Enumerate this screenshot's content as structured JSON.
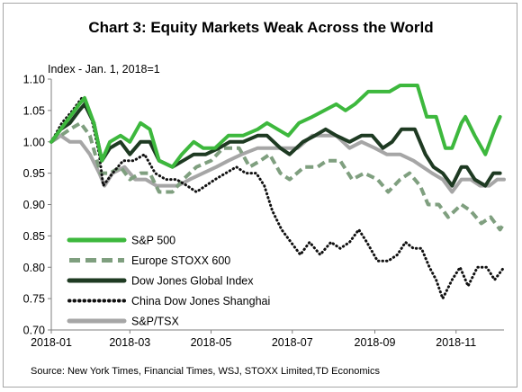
{
  "chart_data": {
    "type": "line",
    "title": "Chart 3: Equity Markets Weak Across the World",
    "ylabel": "Index - Jan. 1, 2018=1",
    "xlabel": "",
    "source": "Source: New York Times, Financial Times, WSJ,  STOXX Limited,TD Economics",
    "ylim": [
      0.7,
      1.1
    ],
    "yticks": [
      "0.70",
      "0.75",
      "0.80",
      "0.85",
      "0.90",
      "0.95",
      "1.00",
      "1.05",
      "1.10"
    ],
    "xticks": [
      "2018-01",
      "2018-03",
      "2018-05",
      "2018-07",
      "2018-09",
      "2018-11"
    ],
    "xlim": [
      "2018-01-01",
      "2018-12-07"
    ],
    "grid": false,
    "legend": "bottom-left",
    "series": [
      {
        "name": "S&P 500",
        "color": "#3db83d",
        "style": "solid",
        "points": [
          [
            "2018-01-01",
            1.0
          ],
          [
            "2018-01-08",
            1.02
          ],
          [
            "2018-01-15",
            1.04
          ],
          [
            "2018-01-22",
            1.06
          ],
          [
            "2018-01-26",
            1.07
          ],
          [
            "2018-02-02",
            1.03
          ],
          [
            "2018-02-08",
            0.97
          ],
          [
            "2018-02-14",
            1.0
          ],
          [
            "2018-02-22",
            1.01
          ],
          [
            "2018-03-01",
            1.0
          ],
          [
            "2018-03-09",
            1.03
          ],
          [
            "2018-03-16",
            1.02
          ],
          [
            "2018-03-23",
            0.97
          ],
          [
            "2018-04-02",
            0.96
          ],
          [
            "2018-04-09",
            0.98
          ],
          [
            "2018-04-18",
            1.0
          ],
          [
            "2018-04-25",
            0.99
          ],
          [
            "2018-05-04",
            0.99
          ],
          [
            "2018-05-14",
            1.01
          ],
          [
            "2018-05-25",
            1.01
          ],
          [
            "2018-06-05",
            1.02
          ],
          [
            "2018-06-12",
            1.03
          ],
          [
            "2018-06-20",
            1.02
          ],
          [
            "2018-06-28",
            1.01
          ],
          [
            "2018-07-06",
            1.03
          ],
          [
            "2018-07-16",
            1.04
          ],
          [
            "2018-07-25",
            1.05
          ],
          [
            "2018-08-03",
            1.06
          ],
          [
            "2018-08-10",
            1.05
          ],
          [
            "2018-08-17",
            1.06
          ],
          [
            "2018-08-27",
            1.08
          ],
          [
            "2018-09-05",
            1.08
          ],
          [
            "2018-09-12",
            1.08
          ],
          [
            "2018-09-20",
            1.09
          ],
          [
            "2018-09-28",
            1.09
          ],
          [
            "2018-10-03",
            1.09
          ],
          [
            "2018-10-10",
            1.04
          ],
          [
            "2018-10-17",
            1.04
          ],
          [
            "2018-10-24",
            0.99
          ],
          [
            "2018-10-29",
            0.99
          ],
          [
            "2018-11-05",
            1.03
          ],
          [
            "2018-11-08",
            1.04
          ],
          [
            "2018-11-15",
            1.01
          ],
          [
            "2018-11-23",
            0.98
          ],
          [
            "2018-11-30",
            1.02
          ],
          [
            "2018-12-04",
            1.04
          ]
        ]
      },
      {
        "name": "Europe STOXX 600",
        "color": "#7f9f7f",
        "style": "dashed",
        "points": [
          [
            "2018-01-01",
            1.0
          ],
          [
            "2018-01-08",
            1.01
          ],
          [
            "2018-01-15",
            1.02
          ],
          [
            "2018-01-23",
            1.03
          ],
          [
            "2018-01-30",
            1.01
          ],
          [
            "2018-02-07",
            0.95
          ],
          [
            "2018-02-14",
            0.95
          ],
          [
            "2018-02-22",
            0.96
          ],
          [
            "2018-03-01",
            0.94
          ],
          [
            "2018-03-09",
            0.95
          ],
          [
            "2018-03-16",
            0.95
          ],
          [
            "2018-03-23",
            0.92
          ],
          [
            "2018-04-02",
            0.92
          ],
          [
            "2018-04-10",
            0.94
          ],
          [
            "2018-04-20",
            0.96
          ],
          [
            "2018-05-01",
            0.97
          ],
          [
            "2018-05-10",
            0.99
          ],
          [
            "2018-05-22",
            0.99
          ],
          [
            "2018-05-30",
            0.96
          ],
          [
            "2018-06-07",
            0.97
          ],
          [
            "2018-06-14",
            0.98
          ],
          [
            "2018-06-22",
            0.95
          ],
          [
            "2018-06-29",
            0.94
          ],
          [
            "2018-07-10",
            0.96
          ],
          [
            "2018-07-20",
            0.96
          ],
          [
            "2018-07-27",
            0.97
          ],
          [
            "2018-08-06",
            0.97
          ],
          [
            "2018-08-15",
            0.94
          ],
          [
            "2018-08-24",
            0.95
          ],
          [
            "2018-09-03",
            0.94
          ],
          [
            "2018-09-11",
            0.92
          ],
          [
            "2018-09-20",
            0.94
          ],
          [
            "2018-09-27",
            0.95
          ],
          [
            "2018-10-05",
            0.93
          ],
          [
            "2018-10-11",
            0.9
          ],
          [
            "2018-10-19",
            0.9
          ],
          [
            "2018-10-26",
            0.88
          ],
          [
            "2018-11-05",
            0.9
          ],
          [
            "2018-11-12",
            0.89
          ],
          [
            "2018-11-20",
            0.87
          ],
          [
            "2018-11-27",
            0.88
          ],
          [
            "2018-12-04",
            0.86
          ],
          [
            "2018-12-07",
            0.87
          ]
        ]
      },
      {
        "name": "Dow Jones Global Index",
        "color": "#1e3a22",
        "style": "solid",
        "points": [
          [
            "2018-01-01",
            1.0
          ],
          [
            "2018-01-08",
            1.02
          ],
          [
            "2018-01-15",
            1.03
          ],
          [
            "2018-01-22",
            1.05
          ],
          [
            "2018-01-26",
            1.06
          ],
          [
            "2018-02-02",
            1.03
          ],
          [
            "2018-02-08",
            0.97
          ],
          [
            "2018-02-14",
            0.99
          ],
          [
            "2018-02-22",
            1.0
          ],
          [
            "2018-03-01",
            0.98
          ],
          [
            "2018-03-09",
            1.0
          ],
          [
            "2018-03-16",
            1.0
          ],
          [
            "2018-03-23",
            0.97
          ],
          [
            "2018-04-02",
            0.96
          ],
          [
            "2018-04-10",
            0.97
          ],
          [
            "2018-04-18",
            0.98
          ],
          [
            "2018-04-27",
            0.98
          ],
          [
            "2018-05-07",
            0.99
          ],
          [
            "2018-05-15",
            1.0
          ],
          [
            "2018-05-25",
            1.0
          ],
          [
            "2018-06-05",
            1.01
          ],
          [
            "2018-06-12",
            1.01
          ],
          [
            "2018-06-22",
            0.99
          ],
          [
            "2018-06-29",
            0.98
          ],
          [
            "2018-07-09",
            1.0
          ],
          [
            "2018-07-18",
            1.01
          ],
          [
            "2018-07-26",
            1.02
          ],
          [
            "2018-08-03",
            1.01
          ],
          [
            "2018-08-13",
            1.0
          ],
          [
            "2018-08-22",
            1.01
          ],
          [
            "2018-08-30",
            1.01
          ],
          [
            "2018-09-07",
            0.99
          ],
          [
            "2018-09-14",
            1.0
          ],
          [
            "2018-09-21",
            1.02
          ],
          [
            "2018-10-01",
            1.02
          ],
          [
            "2018-10-09",
            0.98
          ],
          [
            "2018-10-15",
            0.96
          ],
          [
            "2018-10-22",
            0.95
          ],
          [
            "2018-10-29",
            0.93
          ],
          [
            "2018-11-05",
            0.96
          ],
          [
            "2018-11-09",
            0.96
          ],
          [
            "2018-11-15",
            0.94
          ],
          [
            "2018-11-23",
            0.93
          ],
          [
            "2018-11-29",
            0.95
          ],
          [
            "2018-12-04",
            0.95
          ]
        ]
      },
      {
        "name": "China Dow Jones Shanghai",
        "color": "#111111",
        "style": "dotted",
        "points": [
          [
            "2018-01-01",
            1.0
          ],
          [
            "2018-01-09",
            1.03
          ],
          [
            "2018-01-17",
            1.05
          ],
          [
            "2018-01-24",
            1.07
          ],
          [
            "2018-01-31",
            1.04
          ],
          [
            "2018-02-06",
            0.98
          ],
          [
            "2018-02-09",
            0.93
          ],
          [
            "2018-02-16",
            0.95
          ],
          [
            "2018-02-24",
            0.97
          ],
          [
            "2018-03-04",
            0.97
          ],
          [
            "2018-03-12",
            0.98
          ],
          [
            "2018-03-20",
            0.95
          ],
          [
            "2018-03-28",
            0.94
          ],
          [
            "2018-04-05",
            0.94
          ],
          [
            "2018-04-13",
            0.93
          ],
          [
            "2018-04-20",
            0.92
          ],
          [
            "2018-04-27",
            0.93
          ],
          [
            "2018-05-04",
            0.94
          ],
          [
            "2018-05-12",
            0.95
          ],
          [
            "2018-05-20",
            0.96
          ],
          [
            "2018-05-27",
            0.95
          ],
          [
            "2018-06-04",
            0.95
          ],
          [
            "2018-06-10",
            0.93
          ],
          [
            "2018-06-16",
            0.89
          ],
          [
            "2018-06-23",
            0.86
          ],
          [
            "2018-06-30",
            0.84
          ],
          [
            "2018-07-07",
            0.82
          ],
          [
            "2018-07-14",
            0.84
          ],
          [
            "2018-07-22",
            0.82
          ],
          [
            "2018-07-30",
            0.84
          ],
          [
            "2018-08-06",
            0.83
          ],
          [
            "2018-08-13",
            0.84
          ],
          [
            "2018-08-20",
            0.86
          ],
          [
            "2018-08-26",
            0.84
          ],
          [
            "2018-09-03",
            0.81
          ],
          [
            "2018-09-11",
            0.81
          ],
          [
            "2018-09-18",
            0.82
          ],
          [
            "2018-09-24",
            0.84
          ],
          [
            "2018-09-30",
            0.83
          ],
          [
            "2018-10-06",
            0.83
          ],
          [
            "2018-10-12",
            0.8
          ],
          [
            "2018-10-17",
            0.78
          ],
          [
            "2018-10-22",
            0.75
          ],
          [
            "2018-10-29",
            0.78
          ],
          [
            "2018-11-04",
            0.8
          ],
          [
            "2018-11-10",
            0.77
          ],
          [
            "2018-11-17",
            0.8
          ],
          [
            "2018-11-24",
            0.8
          ],
          [
            "2018-11-30",
            0.78
          ],
          [
            "2018-12-07",
            0.8
          ]
        ]
      },
      {
        "name": "S&P/TSX",
        "color": "#a6a6a6",
        "style": "solid",
        "points": [
          [
            "2018-01-01",
            1.0
          ],
          [
            "2018-01-08",
            1.01
          ],
          [
            "2018-01-15",
            1.0
          ],
          [
            "2018-01-23",
            1.0
          ],
          [
            "2018-01-30",
            0.98
          ],
          [
            "2018-02-06",
            0.95
          ],
          [
            "2018-02-10",
            0.93
          ],
          [
            "2018-02-16",
            0.95
          ],
          [
            "2018-02-25",
            0.96
          ],
          [
            "2018-03-05",
            0.94
          ],
          [
            "2018-03-13",
            0.94
          ],
          [
            "2018-03-21",
            0.93
          ],
          [
            "2018-03-29",
            0.93
          ],
          [
            "2018-04-06",
            0.93
          ],
          [
            "2018-04-15",
            0.94
          ],
          [
            "2018-04-25",
            0.95
          ],
          [
            "2018-05-05",
            0.96
          ],
          [
            "2018-05-14",
            0.97
          ],
          [
            "2018-05-24",
            0.98
          ],
          [
            "2018-06-05",
            0.99
          ],
          [
            "2018-06-15",
            0.99
          ],
          [
            "2018-06-25",
            0.99
          ],
          [
            "2018-07-05",
            0.99
          ],
          [
            "2018-07-16",
            1.01
          ],
          [
            "2018-07-25",
            1.01
          ],
          [
            "2018-08-03",
            1.01
          ],
          [
            "2018-08-13",
            0.99
          ],
          [
            "2018-08-22",
            1.0
          ],
          [
            "2018-09-01",
            0.99
          ],
          [
            "2018-09-10",
            0.98
          ],
          [
            "2018-09-20",
            0.98
          ],
          [
            "2018-09-30",
            0.97
          ],
          [
            "2018-10-07",
            0.96
          ],
          [
            "2018-10-14",
            0.95
          ],
          [
            "2018-10-22",
            0.94
          ],
          [
            "2018-10-29",
            0.92
          ],
          [
            "2018-11-05",
            0.94
          ],
          [
            "2018-11-12",
            0.94
          ],
          [
            "2018-11-19",
            0.93
          ],
          [
            "2018-11-26",
            0.93
          ],
          [
            "2018-12-02",
            0.94
          ],
          [
            "2018-12-07",
            0.94
          ]
        ]
      }
    ]
  }
}
